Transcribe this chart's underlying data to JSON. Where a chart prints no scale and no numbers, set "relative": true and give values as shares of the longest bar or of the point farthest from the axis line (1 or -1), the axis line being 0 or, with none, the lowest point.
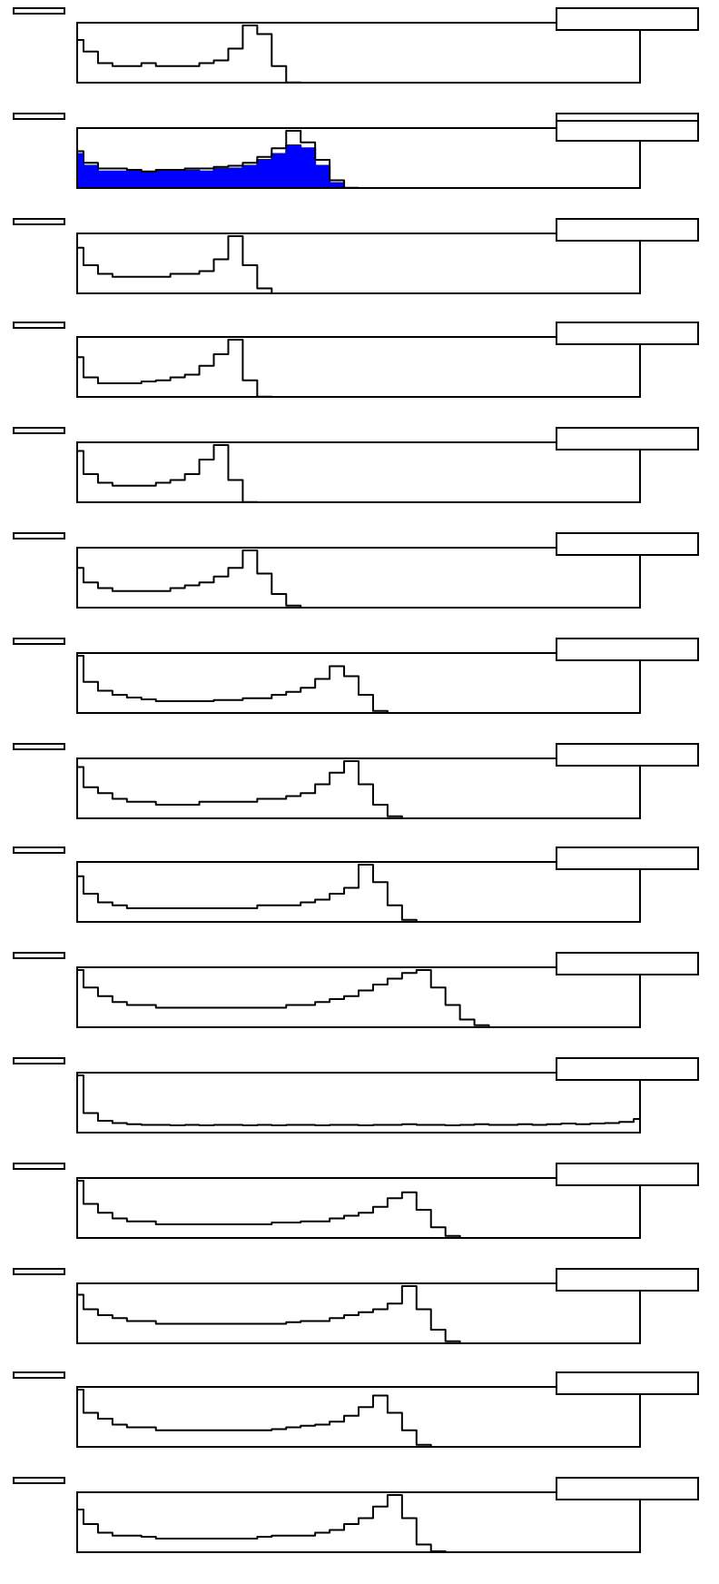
{
  "chart_data": [
    {
      "type": "step",
      "relative": true,
      "legend": false,
      "grid": false,
      "categories": [
        null,
        null,
        null,
        null,
        null,
        null,
        null,
        null,
        null,
        null,
        null,
        null,
        null,
        null,
        null,
        null,
        null,
        null,
        null,
        null,
        null,
        null,
        null,
        null,
        null,
        null,
        null,
        null,
        null,
        null,
        null,
        null,
        null,
        null,
        null,
        null,
        null,
        null,
        null,
        null
      ],
      "color": "#000000",
      "values": [
        0.75,
        0.55,
        0.35,
        0.3,
        0.3,
        0.35,
        0.3,
        0.3,
        0.3,
        0.35,
        0.4,
        0.6,
        1.0,
        0.85,
        0.3,
        0.02,
        0,
        0,
        0,
        0,
        0,
        0,
        0,
        0,
        0,
        0,
        0,
        0,
        0,
        0,
        0,
        0,
        0,
        0,
        0,
        0,
        0,
        0,
        0,
        0
      ]
    },
    {
      "type": "step",
      "relative": true,
      "legend": false,
      "grid": false,
      "categories": [
        null,
        null,
        null,
        null,
        null,
        null,
        null,
        null,
        null,
        null,
        null,
        null,
        null,
        null,
        null,
        null,
        null,
        null,
        null,
        null,
        null,
        null,
        null,
        null,
        null,
        null,
        null,
        null,
        null,
        null,
        null,
        null,
        null,
        null,
        null,
        null,
        null,
        null,
        null,
        null
      ],
      "series": [
        {
          "type": "area",
          "color": "#0000ff",
          "values": [
            0.6,
            0.4,
            0.3,
            0.3,
            0.3,
            0.28,
            0.3,
            0.3,
            0.32,
            0.3,
            0.35,
            0.35,
            0.4,
            0.5,
            0.6,
            0.75,
            0.7,
            0.4,
            0.1,
            0,
            0,
            0,
            0,
            0,
            0,
            0,
            0,
            0,
            0,
            0,
            0,
            0,
            0,
            0,
            0,
            0,
            0,
            0,
            0,
            0
          ]
        },
        {
          "color": "#000000",
          "values": [
            0.65,
            0.45,
            0.35,
            0.35,
            0.33,
            0.3,
            0.33,
            0.33,
            0.35,
            0.35,
            0.38,
            0.4,
            0.45,
            0.55,
            0.7,
            1.0,
            0.8,
            0.5,
            0.15,
            0.02,
            0,
            0,
            0,
            0,
            0,
            0,
            0,
            0,
            0,
            0,
            0,
            0,
            0,
            0,
            0,
            0,
            0,
            0,
            0,
            0
          ]
        }
      ]
    },
    {
      "type": "step",
      "relative": true,
      "legend": false,
      "grid": false,
      "categories": [
        null,
        null,
        null,
        null,
        null,
        null,
        null,
        null,
        null,
        null,
        null,
        null,
        null,
        null,
        null,
        null,
        null,
        null,
        null,
        null,
        null,
        null,
        null,
        null,
        null,
        null,
        null,
        null,
        null,
        null,
        null,
        null,
        null,
        null,
        null,
        null,
        null,
        null,
        null,
        null
      ],
      "color": "#000000",
      "values": [
        0.8,
        0.5,
        0.35,
        0.3,
        0.3,
        0.3,
        0.3,
        0.35,
        0.35,
        0.4,
        0.6,
        1.0,
        0.5,
        0.1,
        0,
        0,
        0,
        0,
        0,
        0,
        0,
        0,
        0,
        0,
        0,
        0,
        0,
        0,
        0,
        0,
        0,
        0,
        0,
        0,
        0,
        0,
        0,
        0,
        0,
        0
      ]
    },
    {
      "type": "step",
      "relative": true,
      "legend": false,
      "grid": false,
      "categories": [
        null,
        null,
        null,
        null,
        null,
        null,
        null,
        null,
        null,
        null,
        null,
        null,
        null,
        null,
        null,
        null,
        null,
        null,
        null,
        null,
        null,
        null,
        null,
        null,
        null,
        null,
        null,
        null,
        null,
        null,
        null,
        null,
        null,
        null,
        null,
        null,
        null,
        null,
        null,
        null
      ],
      "color": "#000000",
      "values": [
        0.7,
        0.35,
        0.25,
        0.25,
        0.25,
        0.28,
        0.3,
        0.35,
        0.4,
        0.55,
        0.75,
        1.0,
        0.3,
        0.02,
        0,
        0,
        0,
        0,
        0,
        0,
        0,
        0,
        0,
        0,
        0,
        0,
        0,
        0,
        0,
        0,
        0,
        0,
        0,
        0,
        0,
        0,
        0,
        0,
        0,
        0
      ]
    },
    {
      "type": "step",
      "relative": true,
      "legend": false,
      "grid": false,
      "categories": [
        null,
        null,
        null,
        null,
        null,
        null,
        null,
        null,
        null,
        null,
        null,
        null,
        null,
        null,
        null,
        null,
        null,
        null,
        null,
        null,
        null,
        null,
        null,
        null,
        null,
        null,
        null,
        null,
        null,
        null,
        null,
        null,
        null,
        null,
        null,
        null,
        null,
        null,
        null,
        null
      ],
      "color": "#000000",
      "values": [
        0.9,
        0.5,
        0.35,
        0.3,
        0.3,
        0.3,
        0.35,
        0.4,
        0.5,
        0.75,
        1.0,
        0.4,
        0.02,
        0,
        0,
        0,
        0,
        0,
        0,
        0,
        0,
        0,
        0,
        0,
        0,
        0,
        0,
        0,
        0,
        0,
        0,
        0,
        0,
        0,
        0,
        0,
        0,
        0,
        0,
        0
      ]
    },
    {
      "type": "step",
      "relative": true,
      "legend": false,
      "grid": false,
      "categories": [
        null,
        null,
        null,
        null,
        null,
        null,
        null,
        null,
        null,
        null,
        null,
        null,
        null,
        null,
        null,
        null,
        null,
        null,
        null,
        null,
        null,
        null,
        null,
        null,
        null,
        null,
        null,
        null,
        null,
        null,
        null,
        null,
        null,
        null,
        null,
        null,
        null,
        null,
        null,
        null
      ],
      "color": "#000000",
      "values": [
        0.7,
        0.45,
        0.35,
        0.3,
        0.3,
        0.3,
        0.3,
        0.35,
        0.4,
        0.45,
        0.55,
        0.7,
        1.0,
        0.6,
        0.25,
        0.05,
        0,
        0,
        0,
        0,
        0,
        0,
        0,
        0,
        0,
        0,
        0,
        0,
        0,
        0,
        0,
        0,
        0,
        0,
        0,
        0,
        0,
        0,
        0,
        0
      ]
    },
    {
      "type": "step",
      "relative": true,
      "legend": false,
      "grid": false,
      "categories": [
        null,
        null,
        null,
        null,
        null,
        null,
        null,
        null,
        null,
        null,
        null,
        null,
        null,
        null,
        null,
        null,
        null,
        null,
        null,
        null,
        null,
        null,
        null,
        null,
        null,
        null,
        null,
        null,
        null,
        null,
        null,
        null,
        null,
        null,
        null,
        null,
        null,
        null,
        null,
        null
      ],
      "color": "#000000",
      "values": [
        1.0,
        0.55,
        0.4,
        0.33,
        0.28,
        0.25,
        0.22,
        0.22,
        0.22,
        0.22,
        0.24,
        0.24,
        0.27,
        0.27,
        0.33,
        0.38,
        0.45,
        0.6,
        0.82,
        0.65,
        0.33,
        0.05,
        0,
        0,
        0,
        0,
        0,
        0,
        0,
        0,
        0,
        0,
        0,
        0,
        0,
        0,
        0,
        0,
        0,
        0
      ]
    },
    {
      "type": "step",
      "relative": true,
      "legend": false,
      "grid": false,
      "categories": [
        null,
        null,
        null,
        null,
        null,
        null,
        null,
        null,
        null,
        null,
        null,
        null,
        null,
        null,
        null,
        null,
        null,
        null,
        null,
        null,
        null,
        null,
        null,
        null,
        null,
        null,
        null,
        null,
        null,
        null,
        null,
        null,
        null,
        null,
        null,
        null,
        null,
        null,
        null,
        null
      ],
      "color": "#000000",
      "values": [
        0.9,
        0.55,
        0.45,
        0.35,
        0.3,
        0.3,
        0.25,
        0.25,
        0.25,
        0.3,
        0.3,
        0.3,
        0.3,
        0.35,
        0.35,
        0.4,
        0.45,
        0.6,
        0.8,
        1.0,
        0.6,
        0.25,
        0.05,
        0,
        0,
        0,
        0,
        0,
        0,
        0,
        0,
        0,
        0,
        0,
        0,
        0,
        0,
        0,
        0,
        0
      ]
    },
    {
      "type": "step",
      "relative": true,
      "legend": false,
      "grid": false,
      "categories": [
        null,
        null,
        null,
        null,
        null,
        null,
        null,
        null,
        null,
        null,
        null,
        null,
        null,
        null,
        null,
        null,
        null,
        null,
        null,
        null,
        null,
        null,
        null,
        null,
        null,
        null,
        null,
        null,
        null,
        null,
        null,
        null,
        null,
        null,
        null,
        null,
        null,
        null,
        null,
        null
      ],
      "color": "#000000",
      "values": [
        0.8,
        0.5,
        0.35,
        0.3,
        0.25,
        0.25,
        0.25,
        0.25,
        0.25,
        0.25,
        0.25,
        0.25,
        0.25,
        0.3,
        0.3,
        0.3,
        0.35,
        0.4,
        0.5,
        0.6,
        1.0,
        0.7,
        0.3,
        0.05,
        0,
        0,
        0,
        0,
        0,
        0,
        0,
        0,
        0,
        0,
        0,
        0,
        0,
        0,
        0,
        0
      ]
    },
    {
      "type": "step",
      "relative": true,
      "legend": false,
      "grid": false,
      "categories": [
        null,
        null,
        null,
        null,
        null,
        null,
        null,
        null,
        null,
        null,
        null,
        null,
        null,
        null,
        null,
        null,
        null,
        null,
        null,
        null,
        null,
        null,
        null,
        null,
        null,
        null,
        null,
        null,
        null,
        null,
        null,
        null,
        null,
        null,
        null,
        null,
        null,
        null,
        null,
        null
      ],
      "color": "#000000",
      "values": [
        1.0,
        0.7,
        0.55,
        0.45,
        0.4,
        0.4,
        0.35,
        0.35,
        0.35,
        0.35,
        0.35,
        0.35,
        0.35,
        0.35,
        0.35,
        0.4,
        0.4,
        0.45,
        0.5,
        0.55,
        0.65,
        0.75,
        0.85,
        0.95,
        1.0,
        0.7,
        0.4,
        0.15,
        0.05,
        0,
        0,
        0,
        0,
        0,
        0,
        0,
        0,
        0,
        0,
        0
      ]
    },
    {
      "type": "step",
      "relative": true,
      "legend": false,
      "grid": false,
      "categories": [
        null,
        null,
        null,
        null,
        null,
        null,
        null,
        null,
        null,
        null,
        null,
        null,
        null,
        null,
        null,
        null,
        null,
        null,
        null,
        null,
        null,
        null,
        null,
        null,
        null,
        null,
        null,
        null,
        null,
        null,
        null,
        null,
        null,
        null,
        null,
        null,
        null,
        null,
        null,
        null
      ],
      "color": "#000000",
      "values": [
        1.0,
        0.35,
        0.22,
        0.18,
        0.16,
        0.15,
        0.15,
        0.14,
        0.15,
        0.14,
        0.15,
        0.15,
        0.14,
        0.15,
        0.14,
        0.15,
        0.15,
        0.14,
        0.15,
        0.15,
        0.14,
        0.15,
        0.15,
        0.16,
        0.15,
        0.15,
        0.14,
        0.15,
        0.16,
        0.15,
        0.15,
        0.16,
        0.15,
        0.16,
        0.17,
        0.16,
        0.17,
        0.18,
        0.2,
        0.25
      ]
    },
    {
      "type": "step",
      "relative": true,
      "legend": false,
      "grid": false,
      "categories": [
        null,
        null,
        null,
        null,
        null,
        null,
        null,
        null,
        null,
        null,
        null,
        null,
        null,
        null,
        null,
        null,
        null,
        null,
        null,
        null,
        null,
        null,
        null,
        null,
        null,
        null,
        null,
        null,
        null,
        null,
        null,
        null,
        null,
        null,
        null,
        null,
        null,
        null,
        null,
        null
      ],
      "color": "#000000",
      "values": [
        1.0,
        0.6,
        0.45,
        0.35,
        0.3,
        0.3,
        0.25,
        0.25,
        0.25,
        0.25,
        0.25,
        0.25,
        0.25,
        0.25,
        0.28,
        0.28,
        0.3,
        0.3,
        0.35,
        0.4,
        0.45,
        0.55,
        0.7,
        0.8,
        0.5,
        0.2,
        0.05,
        0,
        0,
        0,
        0,
        0,
        0,
        0,
        0,
        0,
        0,
        0,
        0,
        0
      ]
    },
    {
      "type": "step",
      "relative": true,
      "legend": false,
      "grid": false,
      "categories": [
        null,
        null,
        null,
        null,
        null,
        null,
        null,
        null,
        null,
        null,
        null,
        null,
        null,
        null,
        null,
        null,
        null,
        null,
        null,
        null,
        null,
        null,
        null,
        null,
        null,
        null,
        null,
        null,
        null,
        null,
        null,
        null,
        null,
        null,
        null,
        null,
        null,
        null,
        null,
        null
      ],
      "color": "#000000",
      "values": [
        0.85,
        0.6,
        0.5,
        0.45,
        0.4,
        0.4,
        0.35,
        0.35,
        0.35,
        0.35,
        0.35,
        0.35,
        0.35,
        0.35,
        0.35,
        0.38,
        0.4,
        0.4,
        0.45,
        0.5,
        0.55,
        0.6,
        0.7,
        1.0,
        0.6,
        0.25,
        0.05,
        0,
        0,
        0,
        0,
        0,
        0,
        0,
        0,
        0,
        0,
        0,
        0,
        0
      ]
    },
    {
      "type": "step",
      "relative": true,
      "legend": false,
      "grid": false,
      "categories": [
        null,
        null,
        null,
        null,
        null,
        null,
        null,
        null,
        null,
        null,
        null,
        null,
        null,
        null,
        null,
        null,
        null,
        null,
        null,
        null,
        null,
        null,
        null,
        null,
        null,
        null,
        null,
        null,
        null,
        null,
        null,
        null,
        null,
        null,
        null,
        null,
        null,
        null,
        null,
        null
      ],
      "color": "#000000",
      "values": [
        1.0,
        0.6,
        0.5,
        0.4,
        0.35,
        0.35,
        0.3,
        0.3,
        0.3,
        0.3,
        0.3,
        0.3,
        0.3,
        0.3,
        0.32,
        0.35,
        0.38,
        0.4,
        0.45,
        0.55,
        0.7,
        0.9,
        0.6,
        0.3,
        0.05,
        0,
        0,
        0,
        0,
        0,
        0,
        0,
        0,
        0,
        0,
        0,
        0,
        0,
        0,
        0
      ]
    },
    {
      "type": "step",
      "relative": true,
      "legend": false,
      "grid": false,
      "categories": [
        null,
        null,
        null,
        null,
        null,
        null,
        null,
        null,
        null,
        null,
        null,
        null,
        null,
        null,
        null,
        null,
        null,
        null,
        null,
        null,
        null,
        null,
        null,
        null,
        null,
        null,
        null,
        null,
        null,
        null,
        null,
        null,
        null,
        null,
        null,
        null,
        null,
        null,
        null,
        null
      ],
      "color": "#000000",
      "values": [
        0.75,
        0.5,
        0.35,
        0.3,
        0.3,
        0.28,
        0.25,
        0.25,
        0.25,
        0.25,
        0.25,
        0.25,
        0.25,
        0.28,
        0.3,
        0.3,
        0.3,
        0.35,
        0.4,
        0.5,
        0.6,
        0.8,
        1.0,
        0.6,
        0.15,
        0.03,
        0,
        0,
        0,
        0,
        0,
        0,
        0,
        0,
        0,
        0,
        0,
        0,
        0,
        0
      ]
    }
  ]
}
